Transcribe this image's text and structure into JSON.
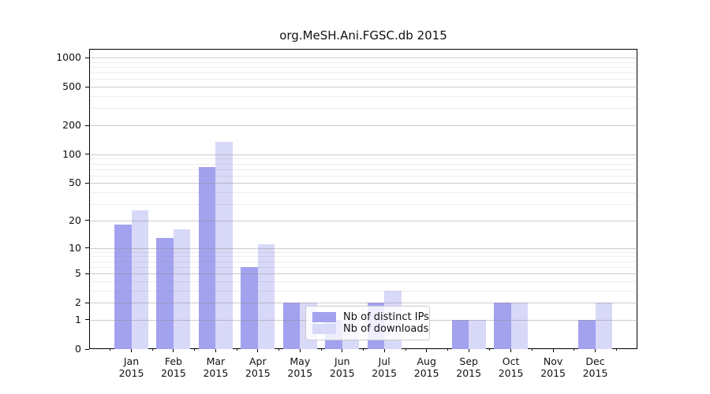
{
  "window": {
    "title": "org.MeSH.Ani.FGSC.db 2015"
  },
  "colors": {
    "distinct_ips": "#a2a2ef",
    "downloads": "#d8d8f8",
    "axis": "#000000",
    "grid_major": "#cccccc",
    "grid_minor": "#e9e9e9",
    "legend_border": "#cccccc",
    "background": "#ffffff"
  },
  "legend": {
    "items": [
      {
        "label": "Nb of distinct IPs",
        "color_key": "distinct_ips"
      },
      {
        "label": "Nb of downloads",
        "color_key": "downloads"
      }
    ]
  },
  "chart_data": {
    "type": "bar",
    "title": "org.MeSH.Ani.FGSC.db 2015",
    "xlabel": "",
    "ylabel": "",
    "year": "2015",
    "months": [
      "Jan",
      "Feb",
      "Mar",
      "Apr",
      "May",
      "Jun",
      "Jul",
      "Aug",
      "Sep",
      "Oct",
      "Nov",
      "Dec"
    ],
    "categories": [
      "Jan 2015",
      "Feb 2015",
      "Mar 2015",
      "Apr 2015",
      "May 2015",
      "Jun 2015",
      "Jul 2015",
      "Aug 2015",
      "Sep 2015",
      "Oct 2015",
      "Nov 2015",
      "Dec 2015"
    ],
    "series": [
      {
        "name": "Nb of distinct IPs",
        "values": [
          18,
          13,
          74,
          6,
          2,
          1,
          2,
          0,
          1,
          2,
          0,
          1
        ]
      },
      {
        "name": "Nb of downloads",
        "values": [
          26,
          16,
          134,
          11,
          2,
          1,
          3,
          0,
          1,
          2,
          0,
          2
        ]
      }
    ],
    "y_scale": "log1p",
    "y_ticks": [
      0,
      1,
      2,
      5,
      10,
      20,
      50,
      100,
      200,
      500,
      1000
    ],
    "y_minor_ticks": [
      3,
      4,
      6,
      7,
      8,
      9,
      30,
      40,
      60,
      70,
      80,
      90,
      300,
      400,
      600,
      700,
      800,
      900
    ],
    "ylim": [
      0,
      1230
    ],
    "grid": "horizontal",
    "legend_position": "lower-center-inside"
  }
}
